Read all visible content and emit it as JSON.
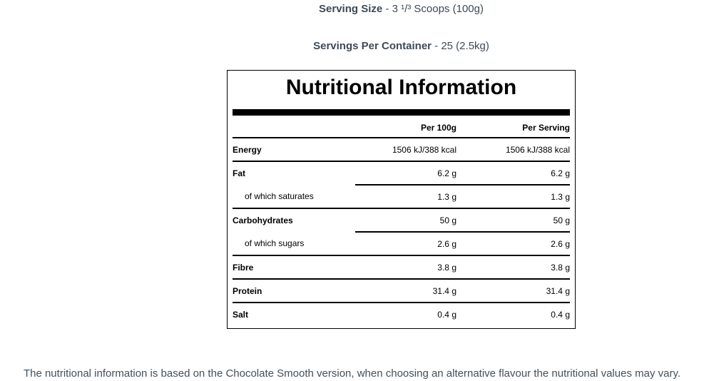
{
  "serving_info": {
    "size_label": "Serving Size",
    "size_value": "- 3 ¹/³ Scoops (100g)",
    "container_label": "Servings Per Container",
    "container_value": "- 25 (2.5kg)"
  },
  "table": {
    "title": "Nutritional Information",
    "columns": [
      "",
      "Per 100g",
      "Per Serving"
    ],
    "rows": [
      {
        "label": "Energy",
        "per_100g": "1506 kJ/388 kcal",
        "per_serving": "1506 kJ/388 kcal",
        "indent": false,
        "separator": "full"
      },
      {
        "label": "Fat",
        "per_100g": "6.2 g",
        "per_serving": "6.2 g",
        "indent": false,
        "separator": "partial"
      },
      {
        "label": "of which saturates",
        "per_100g": "1.3 g",
        "per_serving": "1.3 g",
        "indent": true,
        "separator": "full"
      },
      {
        "label": "Carbohydrates",
        "per_100g": "50 g",
        "per_serving": "50 g",
        "indent": false,
        "separator": "partial"
      },
      {
        "label": "of which sugars",
        "per_100g": "2.6 g",
        "per_serving": "2.6 g",
        "indent": true,
        "separator": "full"
      },
      {
        "label": "Fibre",
        "per_100g": "3.8 g",
        "per_serving": "3.8 g",
        "indent": false,
        "separator": "full"
      },
      {
        "label": "Protein",
        "per_100g": "31.4 g",
        "per_serving": "31.4 g",
        "indent": false,
        "separator": "full"
      },
      {
        "label": "Salt",
        "per_100g": "0.4 g",
        "per_serving": "0.4 g",
        "indent": false,
        "separator": "none"
      }
    ]
  },
  "footnote": "The nutritional information is based on the Chocolate Smooth version, when choosing an alternative flavour the nutritional values may vary.",
  "colors": {
    "heading_text": "#3e4a57",
    "table_text": "#000000",
    "footnote_text": "#42505c",
    "rule": "#000000",
    "page_bg": "#ffffff"
  }
}
